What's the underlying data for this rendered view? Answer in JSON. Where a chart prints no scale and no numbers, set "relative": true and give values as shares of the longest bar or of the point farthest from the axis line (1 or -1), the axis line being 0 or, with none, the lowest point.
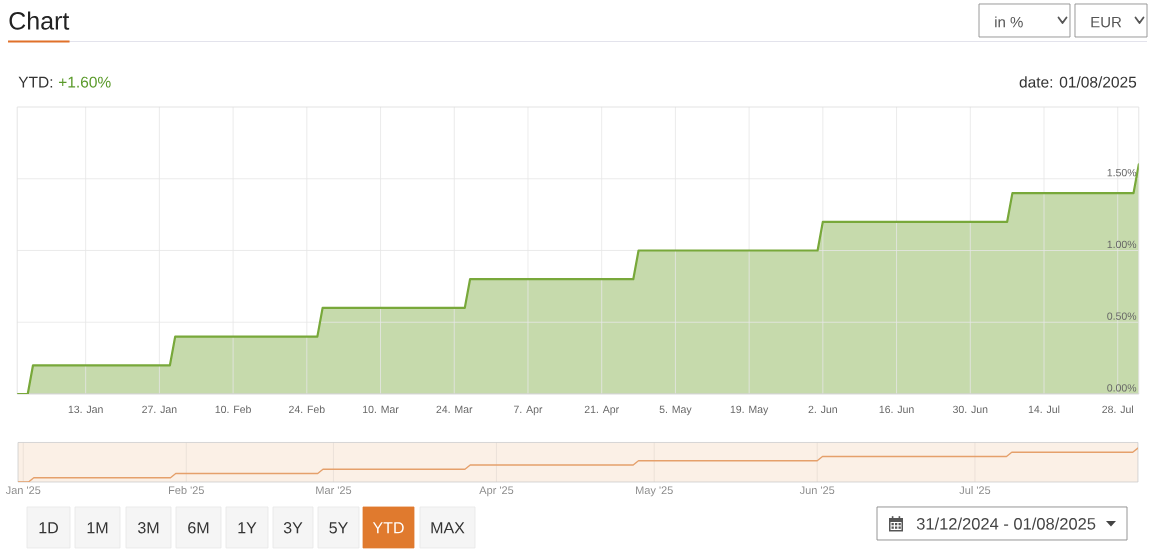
{
  "chart_data": [
    {
      "type": "area",
      "title": "Chart",
      "x": [
        "2024-12-31",
        "2025-01-02",
        "2025-01-03",
        "2025-01-29",
        "2025-01-30",
        "2025-02-26",
        "2025-02-27",
        "2025-03-26",
        "2025-03-27",
        "2025-04-27",
        "2025-04-28",
        "2025-06-01",
        "2025-06-02",
        "2025-07-07",
        "2025-07-08",
        "2025-07-31",
        "2025-08-01"
      ],
      "values": [
        0,
        0,
        0.2,
        0.2,
        0.4,
        0.4,
        0.6,
        0.6,
        0.8,
        0.8,
        1.0,
        1.0,
        1.2,
        1.2,
        1.4,
        1.4,
        1.6
      ],
      "color": "#78a83a",
      "xlim": [
        "2024-12-31",
        "2025-08-01"
      ],
      "xticks": [
        {
          "value": "2025-01-13",
          "label": "13. Jan"
        },
        {
          "value": "2025-01-27",
          "label": "27. Jan"
        },
        {
          "value": "2025-02-10",
          "label": "10. Feb"
        },
        {
          "value": "2025-02-24",
          "label": "24. Feb"
        },
        {
          "value": "2025-03-10",
          "label": "10. Mar"
        },
        {
          "value": "2025-03-24",
          "label": "24. Mar"
        },
        {
          "value": "2025-04-07",
          "label": "7. Apr"
        },
        {
          "value": "2025-04-21",
          "label": "21. Apr"
        },
        {
          "value": "2025-05-05",
          "label": "5. May"
        },
        {
          "value": "2025-05-19",
          "label": "19. May"
        },
        {
          "value": "2025-06-02",
          "label": "2. Jun"
        },
        {
          "value": "2025-06-16",
          "label": "16. Jun"
        },
        {
          "value": "2025-06-30",
          "label": "30. Jun"
        },
        {
          "value": "2025-07-14",
          "label": "14. Jul"
        },
        {
          "value": "2025-07-28",
          "label": "28. Jul"
        }
      ],
      "ylim": [
        0,
        2
      ],
      "yticks": [
        {
          "value": 0,
          "label": "0.00%"
        },
        {
          "value": 0.5,
          "label": "0.50%"
        },
        {
          "value": 1,
          "label": "1.00%"
        },
        {
          "value": 1.5,
          "label": "1.50%"
        }
      ],
      "grid": true,
      "annotations": [
        "YTD:",
        "+1.60%",
        "date: 01/08/2025",
        "in %",
        "EUR",
        "1D",
        "1M",
        "3M",
        "6M",
        "1Y",
        "3Y",
        "5Y",
        "YTD",
        "MAX",
        "31/12/2024 - 01/08/2025"
      ]
    },
    {
      "type": "line",
      "x": [
        "2024-12-31",
        "2025-01-02",
        "2025-01-03",
        "2025-01-29",
        "2025-01-30",
        "2025-02-26",
        "2025-02-27",
        "2025-03-26",
        "2025-03-27",
        "2025-04-27",
        "2025-04-28",
        "2025-06-01",
        "2025-06-02",
        "2025-07-07",
        "2025-07-08",
        "2025-07-31",
        "2025-08-01"
      ],
      "values": [
        0,
        0,
        0.125,
        0.125,
        0.25,
        0.25,
        0.375,
        0.375,
        0.5,
        0.5,
        0.625,
        0.625,
        0.75,
        0.75,
        0.875,
        0.875,
        1
      ],
      "relative": true,
      "color": "#e5a06b",
      "xlim": [
        "2024-12-31",
        "2025-08-01"
      ],
      "xticks": [
        {
          "value": "2025-01-01",
          "label": "Jan '25"
        },
        {
          "value": "2025-02-01",
          "label": "Feb '25"
        },
        {
          "value": "2025-03-01",
          "label": "Mar '25"
        },
        {
          "value": "2025-04-01",
          "label": "Apr '25"
        },
        {
          "value": "2025-05-01",
          "label": "May '25"
        },
        {
          "value": "2025-06-01",
          "label": "Jun '25"
        },
        {
          "value": "2025-07-01",
          "label": "Jul '25"
        }
      ],
      "grid": "x",
      "tick_labels": "x",
      "bands": [
        {
          "axis": "x",
          "from": "2024-12-31",
          "to": "2025-08-01",
          "color": "#fbf0e6"
        }
      ]
    }
  ]
}
